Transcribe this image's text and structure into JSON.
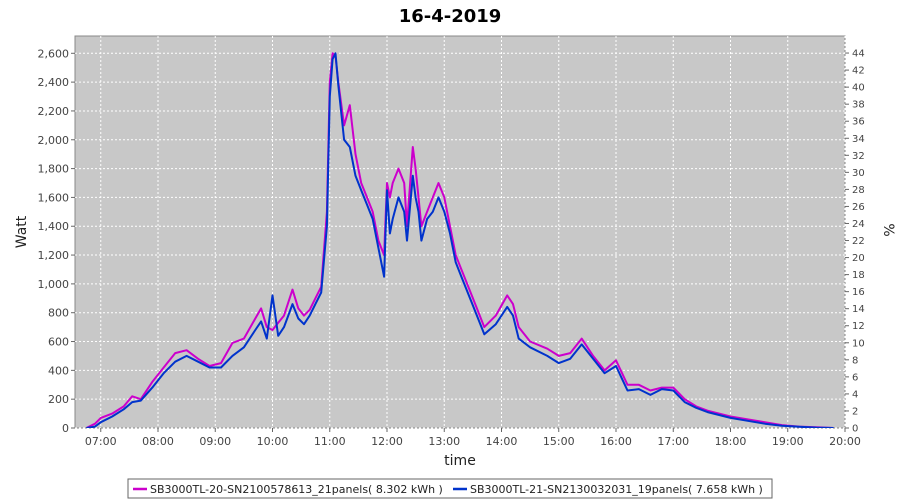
{
  "chart_data": {
    "type": "line",
    "title": "16-4-2019",
    "xlabel": "time",
    "ylabel": "Watt",
    "y2label": "%",
    "x_ticks": [
      "07:00",
      "08:00",
      "09:00",
      "10:00",
      "11:00",
      "12:00",
      "13:00",
      "14:00",
      "15:00",
      "16:00",
      "17:00",
      "18:00",
      "19:00",
      "20:00"
    ],
    "y_ticks": [
      "0",
      "200",
      "400",
      "600",
      "800",
      "1,000",
      "1,200",
      "1,400",
      "1,600",
      "1,800",
      "2,000",
      "2,200",
      "2,400",
      "2,600"
    ],
    "y2_ticks": [
      "0",
      "2",
      "4",
      "6",
      "8",
      "10",
      "12",
      "14",
      "16",
      "18",
      "20",
      "22",
      "24",
      "26",
      "28",
      "30",
      "32",
      "34",
      "36",
      "38",
      "40",
      "42",
      "44"
    ],
    "xlim": [
      6.55,
      20.0
    ],
    "ylim": [
      0,
      2720
    ],
    "y2lim": [
      0,
      46
    ],
    "grid": true,
    "legend_position": "bottom",
    "series": [
      {
        "name": "SB3000TL-20-SN2100578613_21panels( 8.302 kWh )",
        "color": "#cc00cc",
        "x": [
          6.75,
          6.9,
          7.0,
          7.2,
          7.4,
          7.55,
          7.7,
          7.9,
          8.1,
          8.3,
          8.5,
          8.7,
          8.9,
          9.1,
          9.3,
          9.5,
          9.7,
          9.8,
          9.9,
          10.0,
          10.1,
          10.2,
          10.35,
          10.45,
          10.55,
          10.65,
          10.75,
          10.85,
          10.95,
          11.0,
          11.05,
          11.1,
          11.15,
          11.25,
          11.35,
          11.45,
          11.55,
          11.65,
          11.75,
          11.85,
          11.95,
          12.0,
          12.05,
          12.1,
          12.2,
          12.3,
          12.35,
          12.45,
          12.5,
          12.55,
          12.6,
          12.7,
          12.8,
          12.9,
          13.0,
          13.1,
          13.2,
          13.3,
          13.5,
          13.7,
          13.9,
          14.1,
          14.2,
          14.3,
          14.5,
          14.8,
          15.0,
          15.2,
          15.4,
          15.6,
          15.8,
          16.0,
          16.2,
          16.4,
          16.6,
          16.8,
          17.0,
          17.2,
          17.4,
          17.6,
          17.8,
          18.0,
          18.3,
          18.6,
          18.9,
          19.2,
          19.5,
          19.8
        ],
        "y": [
          0,
          30,
          70,
          100,
          150,
          220,
          200,
          320,
          420,
          520,
          540,
          480,
          430,
          450,
          590,
          620,
          760,
          830,
          700,
          680,
          730,
          780,
          960,
          830,
          780,
          820,
          900,
          980,
          1500,
          2400,
          2600,
          2580,
          2400,
          2100,
          2240,
          1900,
          1700,
          1600,
          1500,
          1300,
          1200,
          1700,
          1600,
          1700,
          1800,
          1700,
          1400,
          1950,
          1800,
          1600,
          1400,
          1500,
          1600,
          1700,
          1600,
          1400,
          1200,
          1100,
          900,
          700,
          780,
          920,
          860,
          700,
          600,
          550,
          500,
          520,
          620,
          500,
          400,
          470,
          300,
          300,
          260,
          280,
          280,
          200,
          150,
          120,
          100,
          80,
          60,
          40,
          20,
          10,
          5,
          0
        ]
      },
      {
        "name": "SB3000TL-21-SN2130032031_19panels( 7.658 kWh )",
        "color": "#0033cc",
        "x": [
          6.75,
          6.9,
          7.0,
          7.2,
          7.4,
          7.55,
          7.7,
          7.9,
          8.1,
          8.3,
          8.5,
          8.7,
          8.9,
          9.1,
          9.3,
          9.5,
          9.7,
          9.8,
          9.9,
          10.0,
          10.1,
          10.2,
          10.35,
          10.45,
          10.55,
          10.65,
          10.75,
          10.85,
          10.95,
          11.0,
          11.05,
          11.1,
          11.15,
          11.25,
          11.35,
          11.45,
          11.55,
          11.65,
          11.75,
          11.85,
          11.95,
          12.0,
          12.05,
          12.1,
          12.2,
          12.3,
          12.35,
          12.45,
          12.5,
          12.55,
          12.6,
          12.7,
          12.8,
          12.9,
          13.0,
          13.1,
          13.2,
          13.3,
          13.5,
          13.7,
          13.9,
          14.1,
          14.2,
          14.3,
          14.5,
          14.8,
          15.0,
          15.2,
          15.4,
          15.6,
          15.8,
          16.0,
          16.2,
          16.4,
          16.6,
          16.8,
          17.0,
          17.2,
          17.4,
          17.6,
          17.8,
          18.0,
          18.3,
          18.6,
          18.9,
          19.2,
          19.5,
          19.8
        ],
        "y": [
          0,
          10,
          40,
          80,
          130,
          180,
          190,
          280,
          380,
          460,
          500,
          460,
          420,
          420,
          500,
          560,
          680,
          740,
          620,
          920,
          640,
          700,
          860,
          760,
          720,
          780,
          860,
          940,
          1400,
          2300,
          2560,
          2600,
          2380,
          2000,
          1950,
          1750,
          1650,
          1550,
          1450,
          1250,
          1050,
          1650,
          1350,
          1450,
          1600,
          1500,
          1300,
          1750,
          1600,
          1500,
          1300,
          1450,
          1500,
          1600,
          1500,
          1350,
          1150,
          1050,
          850,
          650,
          720,
          840,
          780,
          620,
          560,
          500,
          450,
          480,
          580,
          480,
          380,
          430,
          260,
          270,
          230,
          270,
          260,
          180,
          140,
          110,
          90,
          70,
          50,
          30,
          15,
          8,
          3,
          0
        ]
      }
    ]
  }
}
